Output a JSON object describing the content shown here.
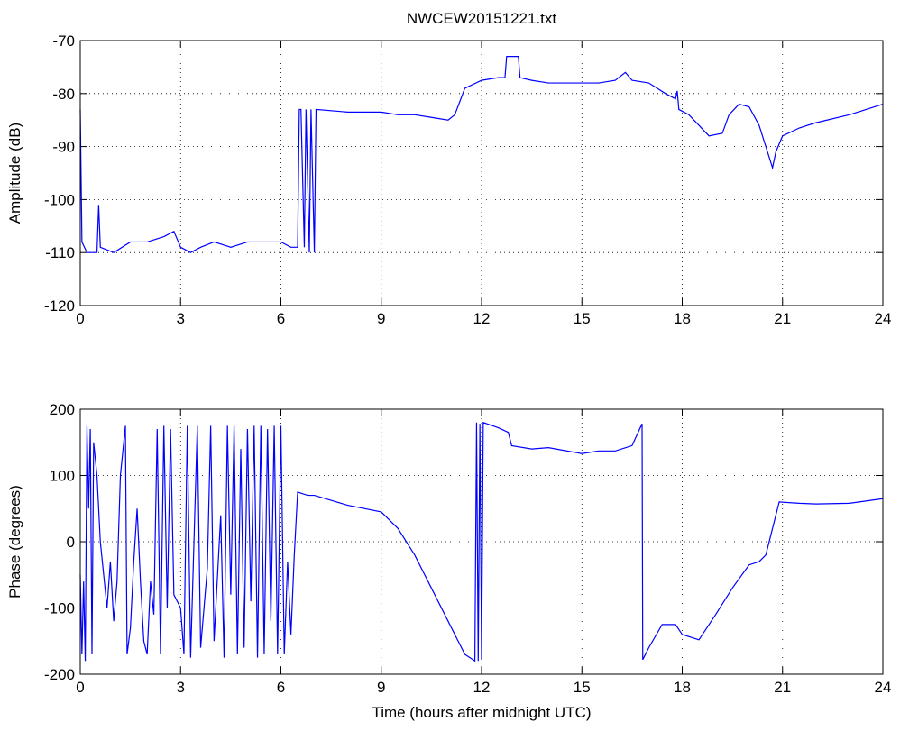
{
  "chart_data": [
    {
      "type": "line",
      "title": "NWCEW20151221.txt",
      "y_label": "Amplitude (dB)",
      "color": "#0000ff",
      "grid": true,
      "xlim": [
        0,
        24
      ],
      "xticks": [
        0,
        3,
        6,
        9,
        12,
        15,
        18,
        21,
        24
      ],
      "ylim": [
        -120,
        -70
      ],
      "yticks": [
        -70,
        -80,
        -90,
        -100,
        -110,
        -120
      ],
      "x": [
        0,
        0.05,
        0.2,
        0.5,
        0.55,
        0.6,
        1,
        1.5,
        2,
        2.5,
        2.8,
        3,
        3.3,
        3.6,
        4,
        4.5,
        5,
        5.5,
        6,
        6.3,
        6.5,
        6.55,
        6.6,
        6.7,
        6.75,
        6.85,
        6.9,
        7.0,
        7.05,
        8,
        9,
        9.5,
        10,
        10.5,
        11,
        11.2,
        11.5,
        12,
        12.5,
        12.7,
        12.75,
        13.1,
        13.15,
        13.5,
        14,
        14.5,
        15,
        15.5,
        16,
        16.3,
        16.5,
        17,
        17.5,
        17.8,
        17.85,
        17.9,
        18.2,
        18.5,
        18.8,
        19.2,
        19.4,
        19.7,
        20,
        20.3,
        20.6,
        20.7,
        20.8,
        21,
        21.5,
        22,
        23,
        24
      ],
      "values": [
        -83,
        -108,
        -110,
        -110,
        -101,
        -109,
        -110,
        -108,
        -108,
        -107,
        -106,
        -109,
        -110,
        -109,
        -108,
        -109,
        -108,
        -108,
        -108,
        -109,
        -109,
        -83,
        -83,
        -109,
        -83,
        -110,
        -83,
        -110,
        -83,
        -83.5,
        -83.5,
        -84,
        -84,
        -84.5,
        -85,
        -84,
        -79,
        -77.5,
        -77,
        -77,
        -73,
        -73,
        -77,
        -77.5,
        -78,
        -78,
        -78,
        -78,
        -77.5,
        -76,
        -77.5,
        -78,
        -80,
        -81,
        -79.5,
        -83,
        -84,
        -86,
        -88,
        -87.5,
        -84,
        -82,
        -82.5,
        -86,
        -92,
        -94,
        -91,
        -88,
        -86.5,
        -85.5,
        -84,
        -82
      ]
    },
    {
      "type": "line",
      "y_label": "Phase (degrees)",
      "x_label": "Time (hours after midnight UTC)",
      "color": "#0000ff",
      "grid": true,
      "xlim": [
        0,
        24
      ],
      "xticks": [
        0,
        3,
        6,
        9,
        12,
        15,
        18,
        21,
        24
      ],
      "ylim": [
        -200,
        200
      ],
      "yticks": [
        200,
        100,
        0,
        -100,
        -200
      ],
      "x": [
        0,
        0.05,
        0.1,
        0.15,
        0.2,
        0.25,
        0.3,
        0.35,
        0.4,
        0.5,
        0.6,
        0.7,
        0.8,
        0.9,
        1.0,
        1.1,
        1.2,
        1.35,
        1.4,
        1.5,
        1.6,
        1.7,
        1.8,
        1.9,
        2.0,
        2.1,
        2.2,
        2.3,
        2.4,
        2.5,
        2.6,
        2.7,
        2.8,
        3.0,
        3.1,
        3.2,
        3.3,
        3.4,
        3.5,
        3.6,
        3.8,
        3.9,
        4.0,
        4.2,
        4.3,
        4.4,
        4.5,
        4.6,
        4.7,
        4.8,
        4.9,
        5.0,
        5.1,
        5.2,
        5.3,
        5.4,
        5.5,
        5.6,
        5.7,
        5.8,
        5.9,
        6.0,
        6.1,
        6.2,
        6.3,
        6.4,
        6.5,
        6.8,
        7,
        8,
        9,
        9.5,
        10,
        10.5,
        11,
        11.5,
        11.8,
        11.85,
        11.9,
        11.95,
        12.0,
        12.05,
        12.5,
        12.8,
        12.9,
        13.5,
        14,
        15,
        15.5,
        16,
        16.5,
        16.8,
        16.82,
        17,
        17.4,
        17.8,
        18,
        18.5,
        19,
        19.5,
        20,
        20.3,
        20.5,
        20.7,
        20.9,
        21.5,
        22,
        23,
        24
      ],
      "values": [
        -50,
        -170,
        -60,
        -180,
        175,
        50,
        170,
        -170,
        150,
        100,
        0,
        -50,
        -100,
        -30,
        -120,
        -60,
        100,
        175,
        -170,
        -130,
        -30,
        50,
        -60,
        -150,
        -170,
        -60,
        -110,
        170,
        -170,
        175,
        -100,
        170,
        -80,
        -100,
        -170,
        175,
        -175,
        0,
        175,
        -160,
        -40,
        175,
        -150,
        40,
        -175,
        175,
        -80,
        175,
        -170,
        140,
        -160,
        170,
        -90,
        175,
        -175,
        175,
        -170,
        170,
        -120,
        175,
        -170,
        175,
        -170,
        -30,
        -140,
        -20,
        75,
        70,
        70,
        55,
        45,
        20,
        -20,
        -70,
        -120,
        -170,
        -180,
        180,
        -180,
        178,
        -178,
        180,
        172,
        165,
        145,
        140,
        142,
        133,
        137,
        137,
        145,
        178,
        -178,
        -160,
        -125,
        -125,
        -140,
        -148,
        -110,
        -70,
        -35,
        -30,
        -20,
        20,
        60,
        58,
        57,
        58,
        65
      ]
    }
  ]
}
